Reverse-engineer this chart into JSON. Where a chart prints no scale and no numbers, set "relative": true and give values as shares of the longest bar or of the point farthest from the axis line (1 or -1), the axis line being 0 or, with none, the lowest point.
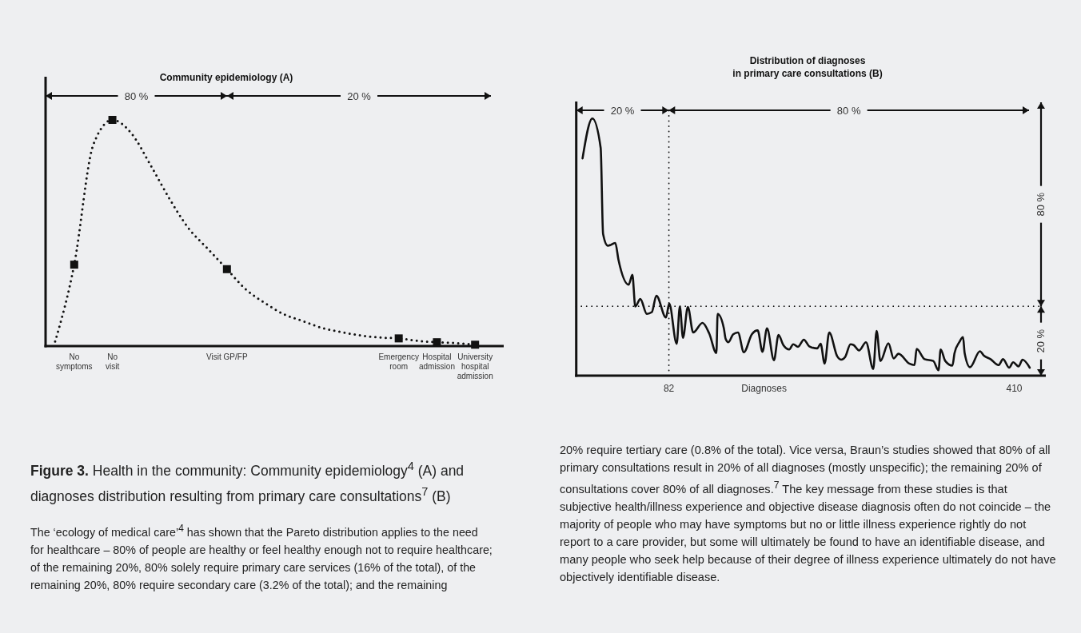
{
  "chart_data": [
    {
      "type": "line",
      "title": "Community epidemiology (A)",
      "relative": true,
      "categories": [
        null,
        "No\nsymptoms",
        null,
        "No\nvisit",
        null,
        null,
        null,
        null,
        null,
        "Visit GP/FP",
        null,
        null,
        null,
        null,
        null,
        null,
        null,
        null,
        "Emergency\nroom",
        null,
        "Hospital\nadmission",
        null,
        "University\nhospital\nadmission",
        null
      ],
      "line_style": "dotted",
      "series": [
        {
          "color": "#111111",
          "marker": "none",
          "values": [
            0.02,
            0.36,
            0.89,
            1,
            0.94,
            0.8,
            0.65,
            0.52,
            0.43,
            0.34,
            0.25,
            0.19,
            0.14,
            0.11,
            0.08,
            0.062,
            0.047,
            0.038,
            0.034,
            0.023,
            0.017,
            0.013,
            0.006,
            null
          ]
        },
        {
          "type": "scatter",
          "color": "#111111",
          "marker": "square",
          "x": [
            "No\nsymptoms",
            "No\nvisit",
            "Visit GP/FP",
            "Emergency\nroom",
            "Hospital\nadmission",
            "University\nhospital\nadmission"
          ],
          "values": [
            0.36,
            1,
            0.34,
            0.034,
            0.017,
            0.006
          ]
        }
      ],
      "annotations": [
        "80 %",
        "20 %",
        "Figure 3.",
        "Health in the community: Community epidemiology$^{4}$ (A) and diagnoses distribution resulting from primary care consultations$^{7}$ (B)",
        "The ‘ecology of medical care’$^{4}$ has shown that the Pareto distribution applies to the need for healthcare – 80% of people are healthy or feel healthy enough not to require healthcare; of the remaining 20%, 80% solely require primary care services (16% of the total), of the remaining 20%, 80% require secondary care (3.2% of the total); and the remaining"
      ]
    },
    {
      "type": "line",
      "title": "Distribution of diagnoses\nin primary care consultations (B)",
      "xlabel": "Diagnoses",
      "relative": true,
      "xlim": [
        -6,
        440
      ],
      "xticks": [
        82,
        410
      ],
      "line_style": "solid",
      "series": [
        {
          "color": "#111111",
          "x": [
            0,
            9.3,
            17.2,
            19.5,
            24,
            31.1,
            34.1,
            43.8,
            47.3,
            50.1,
            54.9,
            61,
            65.8,
            70.1,
            79.2,
            82.3,
            89.4,
            92.4,
            95.4,
            100,
            105.1,
            113.9,
            120.3,
            127.1,
            128.3,
            134.2,
            135.9,
            138.5,
            143.1,
            147.6,
            153.2,
            160.8,
            166.3,
            170.9,
            175.2,
            181.8,
            186.1,
            190.7,
            196.3,
            200.1,
            204.6,
            210.2,
            215.3,
            222.9,
            226.1,
            229.9,
            234.3,
            241.9,
            245.7,
            249.5,
            254.5,
            257.5,
            262.6,
            269.2,
            276.1,
            279.3,
            282.9,
            290.5,
            295.5,
            300.1,
            310.3,
            315.3,
            317.3,
            324.9,
            333.1,
            338.1,
            340.1,
            344.5,
            351.3,
            353.3,
            357.8,
            361.4,
            362.9,
            368,
            377.4,
            381.2,
            387.5,
            395.1,
            399.4,
            405.2,
            409,
            414.1,
            417.9,
            424.7
          ],
          "values": [
            0.845,
            1,
            0.886,
            0.551,
            0.505,
            0.516,
            0.451,
            0.354,
            0.392,
            0.269,
            0.298,
            0.24,
            0.247,
            0.311,
            0.226,
            0.28,
            0.124,
            0.269,
            0.147,
            0.267,
            0.168,
            0.205,
            0.164,
            0.088,
            0.24,
            0.184,
            0.143,
            0.13,
            0.161,
            0.168,
            0.091,
            0.161,
            0.176,
            0.093,
            0.184,
            0.06,
            0.158,
            0.119,
            0.102,
            0.122,
            0.112,
            0.14,
            0.114,
            0.106,
            0.124,
            0.047,
            0.168,
            0.075,
            0.062,
            0.073,
            0.122,
            0.119,
            0.098,
            0.13,
            0.026,
            0.174,
            0.057,
            0.126,
            0.067,
            0.085,
            0.047,
            0.041,
            0.104,
            0.064,
            0.057,
            0.021,
            0.102,
            0.057,
            0.039,
            0.088,
            0.13,
            0.15,
            0.088,
            0.033,
            0.095,
            0.078,
            0.064,
            0.041,
            0.064,
            0.031,
            0.052,
            0.036,
            0.062,
            0.031
          ]
        }
      ],
      "ref_lines": [
        {
          "axis": "x",
          "value": 82,
          "line_style": "dotted"
        },
        {
          "axis": "y",
          "value": 0.27,
          "line_style": "dotted"
        }
      ],
      "annotations": [
        "20 %",
        "80 %",
        "80 %",
        "20 %",
        "20% require tertiary care (0.8% of the total). Vice versa, Braun’s studies showed that 80% of all primary consultations result in 20% of all diagnoses (mostly unspecific); the remaining 20% of consultations cover 80% of all diagnoses.$^{7}$ The key message from these studies is that subjective health/illness experience and objective disease diagnosis often do not coincide – the majority of people who may have symptoms but no or little illness experience rightly do not report to a care provider, but some will ultimately be found to have an identifiable disease, and many people who seek help because of their degree of illness experience ultimately do not have objectively identifiable disease."
      ]
    }
  ]
}
